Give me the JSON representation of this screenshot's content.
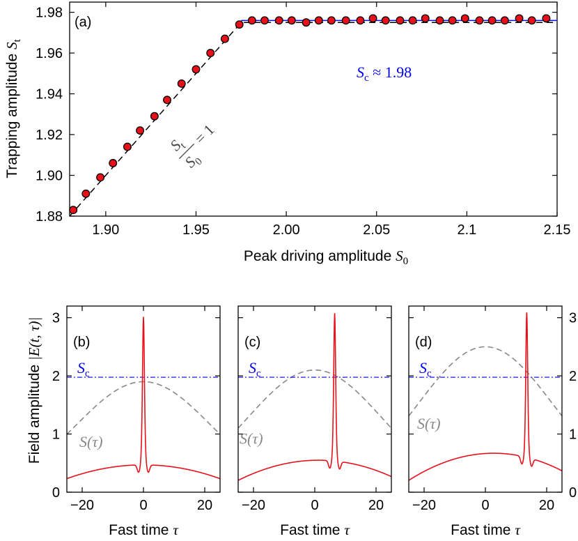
{
  "chart_data": [
    {
      "panel": "(a)",
      "type": "scatter",
      "xlabel_text": "Peak driving amplitude ",
      "xlabel_sym": "S",
      "xlabel_sub": "0",
      "ylabel_text": "Trapping amplitude ",
      "ylabel_sym": "S",
      "ylabel_sub": "t",
      "xlim": [
        1.88,
        2.15
      ],
      "ylim": [
        1.88,
        1.985
      ],
      "xticks": [
        1.9,
        1.95,
        2.0,
        2.05,
        2.1,
        2.15
      ],
      "xtick_labels": [
        "1.90",
        "1.95",
        "2.00",
        "2.05",
        "2.1",
        "2.15"
      ],
      "yticks": [
        1.88,
        1.9,
        1.92,
        1.94,
        1.96,
        1.98
      ],
      "ytick_labels": [
        "1.88",
        "1.90",
        "1.92",
        "1.94",
        "1.96",
        "1.98"
      ],
      "series": [
        {
          "style": "markers",
          "color": "#e8101a",
          "x": [
            1.882,
            1.889,
            1.897,
            1.904,
            1.912,
            1.919,
            1.927,
            1.934,
            1.942,
            1.95,
            1.958,
            1.966,
            1.974,
            1.981,
            1.988,
            1.996,
            2.003,
            2.011,
            2.018,
            2.025,
            2.033,
            2.041,
            2.048,
            2.055,
            2.063,
            2.07,
            2.077,
            2.085,
            2.092,
            2.099,
            2.107,
            2.114,
            2.121,
            2.129,
            2.136,
            2.144
          ],
          "y": [
            1.883,
            1.891,
            1.899,
            1.906,
            1.914,
            1.922,
            1.929,
            1.937,
            1.945,
            1.952,
            1.96,
            1.967,
            1.974,
            1.976,
            1.976,
            1.976,
            1.976,
            1.975,
            1.976,
            1.976,
            1.976,
            1.976,
            1.977,
            1.976,
            1.976,
            1.976,
            1.977,
            1.976,
            1.976,
            1.977,
            1.976,
            1.976,
            1.976,
            1.977,
            1.976,
            1.977
          ]
        },
        {
          "style": "dashed",
          "color": "#000000",
          "x": [
            1.88,
            1.975,
            2.15
          ],
          "y": [
            1.88,
            1.975,
            1.975
          ]
        },
        {
          "style": "solid",
          "color": "#0000ff",
          "x": [
            1.975,
            2.15
          ],
          "y": [
            1.976,
            1.976
          ]
        }
      ],
      "annotation_ratio_num": "S",
      "annotation_ratio_num_sub": "t",
      "annotation_ratio_den": "S",
      "annotation_ratio_den_sub": "0",
      "annotation_ratio_eq": "= 1",
      "annotation_sc_sym": "S",
      "annotation_sc_sub": "c",
      "annotation_sc_val": " ≈ 1.98"
    },
    {
      "panel": "(b)",
      "type": "line",
      "xlim": [
        -25,
        25
      ],
      "ylim": [
        0,
        3.2
      ],
      "drive_peak": 1.9,
      "soliton_center": 0,
      "soliton_peak": 2.92,
      "background_edge": 0.22,
      "background_peak": 0.47
    },
    {
      "panel": "(c)",
      "type": "line",
      "xlim": [
        -25,
        25
      ],
      "ylim": [
        0,
        3.2
      ],
      "drive_peak": 2.1,
      "soliton_center": 6.5,
      "soliton_peak": 2.97,
      "background_edge": 0.22,
      "background_peak": 0.55
    },
    {
      "panel": "(d)",
      "type": "line",
      "xlim": [
        -25,
        25
      ],
      "ylim": [
        0,
        3.2
      ],
      "drive_peak": 2.5,
      "soliton_center": 13.5,
      "soliton_peak": 2.97,
      "background_edge": 0.27,
      "background_peak": 0.67
    }
  ],
  "bottom": {
    "xlabel_text": "Fast time ",
    "xlabel_sym": "τ",
    "xticks": [
      -20,
      0,
      20
    ],
    "xtick_labels": [
      "−20",
      "0",
      "20"
    ],
    "yticks": [
      0,
      1,
      2,
      3
    ],
    "ytick_labels": [
      "0",
      "1",
      "2",
      "3"
    ],
    "ylabel_text": "Field amplitude ",
    "ylabel_sym": "|E(t, τ)|",
    "sc_level": 1.976,
    "sc_sym": "S",
    "sc_sub": "c",
    "drive_label": "S(τ)",
    "colors": {
      "soliton": "#e8101a",
      "drive": "#888888",
      "sc": "#1a1aee"
    }
  }
}
